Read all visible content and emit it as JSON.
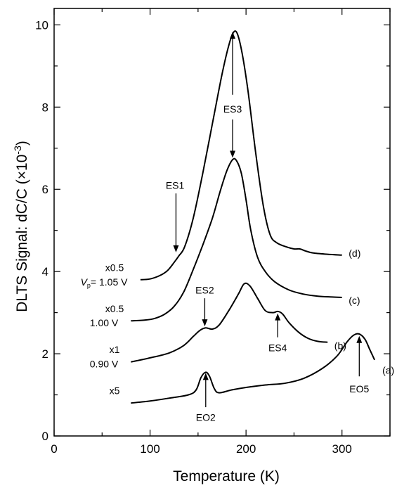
{
  "chart_data": {
    "type": "line",
    "title": "",
    "xlabel": "Temperature (K)",
    "ylabel_main": "DLTS Signal: dC/C (×10",
    "ylabel_exp": "-3",
    "ylabel_tail": ")",
    "xlim": [
      0,
      350
    ],
    "ylim": [
      0,
      10.4
    ],
    "x_ticks": [
      0,
      100,
      200,
      300
    ],
    "y_ticks": [
      0,
      2,
      4,
      6,
      8,
      10
    ],
    "grid": false,
    "series": [
      {
        "name": "(a)",
        "scale_label": "x5",
        "bias_label": "",
        "points": [
          [
            80,
            0.8
          ],
          [
            100,
            0.85
          ],
          [
            120,
            0.92
          ],
          [
            140,
            1.0
          ],
          [
            148,
            1.12
          ],
          [
            153,
            1.42
          ],
          [
            158,
            1.55
          ],
          [
            162,
            1.45
          ],
          [
            167,
            1.15
          ],
          [
            172,
            1.05
          ],
          [
            185,
            1.12
          ],
          [
            200,
            1.18
          ],
          [
            220,
            1.24
          ],
          [
            240,
            1.28
          ],
          [
            260,
            1.4
          ],
          [
            280,
            1.65
          ],
          [
            295,
            1.95
          ],
          [
            305,
            2.28
          ],
          [
            312,
            2.45
          ],
          [
            318,
            2.48
          ],
          [
            324,
            2.35
          ],
          [
            329,
            2.1
          ],
          [
            334,
            1.85
          ]
        ]
      },
      {
        "name": "(b)",
        "scale_label": "x1",
        "bias_label": "0.90 V",
        "points": [
          [
            80,
            1.8
          ],
          [
            100,
            1.9
          ],
          [
            120,
            2.02
          ],
          [
            135,
            2.2
          ],
          [
            145,
            2.42
          ],
          [
            152,
            2.57
          ],
          [
            158,
            2.63
          ],
          [
            165,
            2.6
          ],
          [
            172,
            2.7
          ],
          [
            182,
            3.05
          ],
          [
            192,
            3.45
          ],
          [
            198,
            3.7
          ],
          [
            204,
            3.65
          ],
          [
            212,
            3.35
          ],
          [
            220,
            3.05
          ],
          [
            228,
            3.0
          ],
          [
            233,
            3.03
          ],
          [
            238,
            2.97
          ],
          [
            245,
            2.75
          ],
          [
            255,
            2.52
          ],
          [
            265,
            2.37
          ],
          [
            275,
            2.3
          ],
          [
            285,
            2.28
          ]
        ]
      },
      {
        "name": "(c)",
        "scale_label": "x0.5",
        "bias_label": "1.00 V",
        "points": [
          [
            80,
            2.8
          ],
          [
            95,
            2.82
          ],
          [
            105,
            2.86
          ],
          [
            115,
            2.96
          ],
          [
            125,
            3.15
          ],
          [
            135,
            3.5
          ],
          [
            145,
            4.05
          ],
          [
            155,
            4.65
          ],
          [
            165,
            5.3
          ],
          [
            173,
            5.95
          ],
          [
            180,
            6.45
          ],
          [
            186,
            6.72
          ],
          [
            190,
            6.7
          ],
          [
            195,
            6.4
          ],
          [
            200,
            5.75
          ],
          [
            205,
            5.0
          ],
          [
            212,
            4.35
          ],
          [
            220,
            4.0
          ],
          [
            230,
            3.75
          ],
          [
            245,
            3.55
          ],
          [
            260,
            3.45
          ],
          [
            275,
            3.4
          ],
          [
            290,
            3.38
          ],
          [
            300,
            3.37
          ]
        ]
      },
      {
        "name": "(d)",
        "scale_label": "x0.5",
        "bias_label": "= 1.05 V",
        "points": [
          [
            90,
            3.8
          ],
          [
            100,
            3.82
          ],
          [
            110,
            3.9
          ],
          [
            118,
            4.02
          ],
          [
            125,
            4.22
          ],
          [
            130,
            4.38
          ],
          [
            136,
            4.6
          ],
          [
            145,
            5.3
          ],
          [
            155,
            6.4
          ],
          [
            165,
            7.6
          ],
          [
            175,
            8.8
          ],
          [
            182,
            9.5
          ],
          [
            187,
            9.82
          ],
          [
            191,
            9.78
          ],
          [
            196,
            9.3
          ],
          [
            202,
            8.4
          ],
          [
            210,
            6.9
          ],
          [
            218,
            5.6
          ],
          [
            225,
            4.9
          ],
          [
            232,
            4.7
          ],
          [
            242,
            4.6
          ],
          [
            250,
            4.55
          ],
          [
            256,
            4.55
          ],
          [
            262,
            4.5
          ],
          [
            270,
            4.45
          ],
          [
            285,
            4.42
          ],
          [
            300,
            4.4
          ]
        ]
      }
    ],
    "annotations": [
      {
        "label": "ES1",
        "label_at": [
          126,
          6.1
        ],
        "arrow_from": [
          127,
          5.9
        ],
        "arrow_to": [
          127,
          4.45
        ]
      },
      {
        "label": "ES2",
        "label_at": [
          157,
          3.55
        ],
        "arrow_from": [
          157,
          3.35
        ],
        "arrow_to": [
          157,
          2.65
        ]
      },
      {
        "label": "ES3",
        "label_at": [
          186,
          7.95
        ],
        "arrow_from": [
          186,
          8.3
        ],
        "arrow_to": [
          186,
          9.85
        ],
        "arrow2_from": [
          186,
          7.7
        ],
        "arrow2_to": [
          186,
          6.75
        ]
      },
      {
        "label": "ES4",
        "label_at": [
          233,
          2.15
        ],
        "arrow_from": [
          233,
          2.4
        ],
        "arrow_to": [
          233,
          3.0
        ]
      },
      {
        "label": "EO2",
        "label_at": [
          158,
          0.45
        ],
        "arrow_from": [
          158,
          0.7
        ],
        "arrow_to": [
          158,
          1.55
        ]
      },
      {
        "label": "EO5",
        "label_at": [
          318,
          1.15
        ],
        "arrow_from": [
          318,
          1.45
        ],
        "arrow_to": [
          318,
          2.45
        ]
      }
    ],
    "vp_symbol": "V",
    "vp_subscript": "p"
  }
}
